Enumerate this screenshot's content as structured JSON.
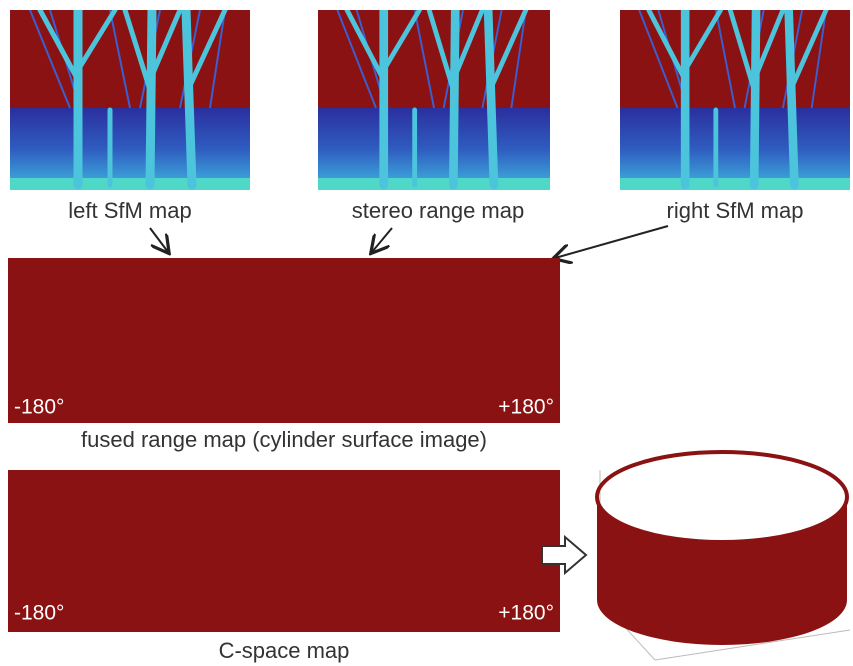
{
  "top_panels": [
    {
      "label": "left SfM map"
    },
    {
      "label": "stereo range map"
    },
    {
      "label": "right SfM map"
    }
  ],
  "fused_map": {
    "label": "fused range map (cylinder surface image)",
    "left_angle": "-180°",
    "right_angle": "+180°"
  },
  "cspace_map": {
    "label": "C-space map",
    "left_angle": "-180°",
    "right_angle": "+180°"
  }
}
